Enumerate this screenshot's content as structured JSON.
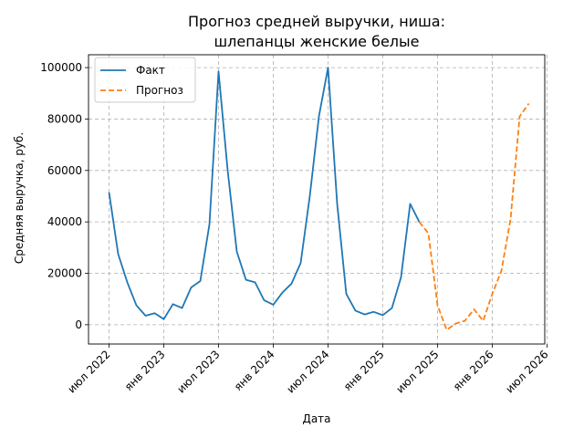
{
  "chart_data": {
    "type": "line",
    "title": [
      "Прогноз средней выручки, ниша:",
      "шлепанцы женские белые"
    ],
    "xlabel": "Дата",
    "ylabel": "Средняя выручка, руб.",
    "x_tick_labels": [
      "июл 2022",
      "янв 2023",
      "июл 2023",
      "янв 2024",
      "июл 2024",
      "янв 2025",
      "июл 2025",
      "янв 2026",
      "июл 2026"
    ],
    "x_tick_dates": [
      "2022-07",
      "2023-01",
      "2023-07",
      "2024-01",
      "2024-07",
      "2025-01",
      "2025-07",
      "2026-01",
      "2026-07"
    ],
    "y_ticks": [
      0,
      20000,
      40000,
      60000,
      80000,
      100000
    ],
    "y_tick_labels": [
      "0",
      "20000",
      "40000",
      "60000",
      "80000",
      "100000"
    ],
    "xlim": [
      "2022-05",
      "2026-07"
    ],
    "ylim": [
      -7500,
      105000
    ],
    "grid": true,
    "legend_position": "top-left",
    "series": [
      {
        "name": "Факт",
        "color": "#1f77b4",
        "style": "solid",
        "points": [
          [
            "2022-07",
            51500
          ],
          [
            "2022-08",
            27500
          ],
          [
            "2022-09",
            16500
          ],
          [
            "2022-10",
            7500
          ],
          [
            "2022-11",
            3500
          ],
          [
            "2022-12",
            4500
          ],
          [
            "2023-01",
            2200
          ],
          [
            "2023-02",
            8000
          ],
          [
            "2023-03",
            6500
          ],
          [
            "2023-04",
            14500
          ],
          [
            "2023-05",
            17000
          ],
          [
            "2023-06",
            39000
          ],
          [
            "2023-07",
            98500
          ],
          [
            "2023-08",
            60000
          ],
          [
            "2023-09",
            28500
          ],
          [
            "2023-10",
            17500
          ],
          [
            "2023-11",
            16500
          ],
          [
            "2023-12",
            9500
          ],
          [
            "2024-01",
            7800
          ],
          [
            "2024-02",
            12500
          ],
          [
            "2024-03",
            16000
          ],
          [
            "2024-04",
            24000
          ],
          [
            "2024-05",
            50000
          ],
          [
            "2024-06",
            81000
          ],
          [
            "2024-07",
            100000
          ],
          [
            "2024-08",
            47000
          ],
          [
            "2024-09",
            12000
          ],
          [
            "2024-10",
            5500
          ],
          [
            "2024-11",
            4000
          ],
          [
            "2024-12",
            5000
          ],
          [
            "2025-01",
            3700
          ],
          [
            "2025-02",
            6500
          ],
          [
            "2025-03",
            18500
          ],
          [
            "2025-04",
            47000
          ],
          [
            "2025-05",
            40000
          ]
        ]
      },
      {
        "name": "Прогноз",
        "color": "#ff7f0e",
        "style": "dashed",
        "points": [
          [
            "2025-05",
            40000
          ],
          [
            "2025-06",
            35500
          ],
          [
            "2025-07",
            7500
          ],
          [
            "2025-08",
            -2000
          ],
          [
            "2025-09",
            500
          ],
          [
            "2025-10",
            1500
          ],
          [
            "2025-11",
            6000
          ],
          [
            "2025-12",
            1500
          ],
          [
            "2026-01",
            12000
          ],
          [
            "2026-02",
            21000
          ],
          [
            "2026-03",
            41000
          ],
          [
            "2026-04",
            81000
          ],
          [
            "2026-05",
            86000
          ]
        ]
      }
    ]
  }
}
